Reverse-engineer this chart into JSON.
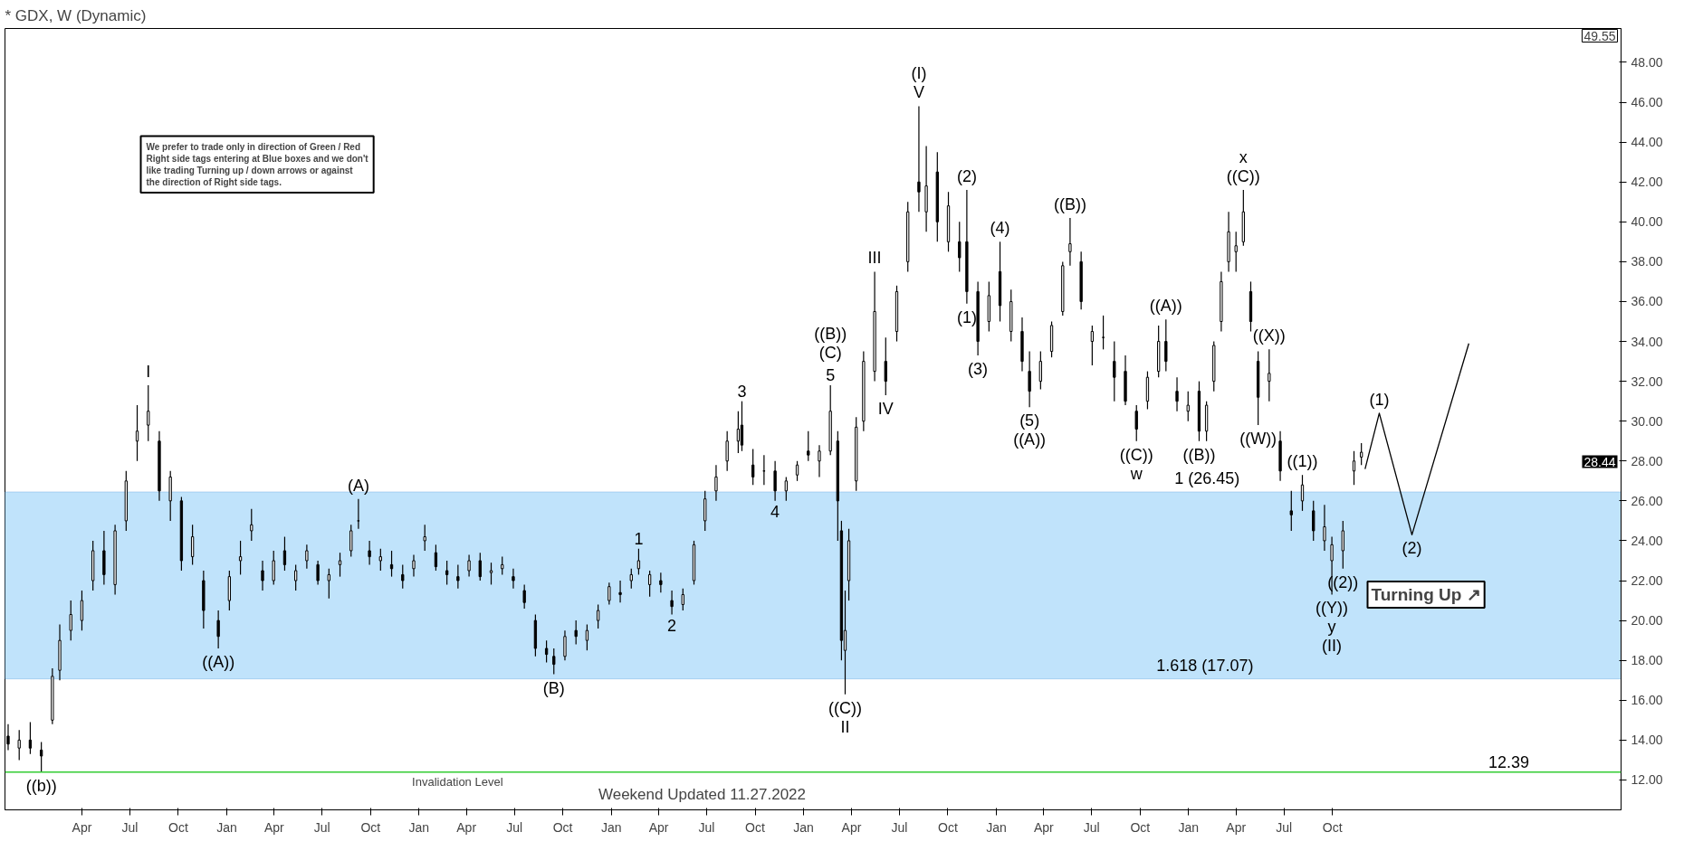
{
  "chart_data": {
    "type": "candlestick",
    "title": "* GDX, W (Dynamic)",
    "x": [
      "2015-11-13",
      "2015-12-04",
      "2015-12-25",
      "2016-01-15",
      "2016-02-05",
      "2016-02-19",
      "2016-03-11",
      "2016-04-01",
      "2016-04-22",
      "2016-05-13",
      "2016-06-03",
      "2016-06-24",
      "2016-07-15",
      "2016-08-05",
      "2016-08-26",
      "2016-09-16",
      "2016-10-07",
      "2016-10-28",
      "2016-11-18",
      "2016-12-16",
      "2017-01-06",
      "2017-01-27",
      "2017-02-17",
      "2017-03-10",
      "2017-03-31",
      "2017-04-21",
      "2017-05-12",
      "2017-06-02",
      "2017-06-23",
      "2017-07-14",
      "2017-08-04",
      "2017-08-25",
      "2017-09-08",
      "2017-09-29",
      "2017-10-20",
      "2017-11-10",
      "2017-12-01",
      "2017-12-22",
      "2018-01-12",
      "2018-02-02",
      "2018-02-23",
      "2018-03-16",
      "2018-04-06",
      "2018-04-27",
      "2018-05-18",
      "2018-06-08",
      "2018-06-29",
      "2018-07-20",
      "2018-08-10",
      "2018-08-31",
      "2018-09-14",
      "2018-10-05",
      "2018-10-26",
      "2018-11-16",
      "2018-12-07",
      "2018-12-28",
      "2019-01-18",
      "2019-02-08",
      "2019-02-22",
      "2019-03-15",
      "2019-04-05",
      "2019-04-26",
      "2019-05-17",
      "2019-06-07",
      "2019-06-28",
      "2019-07-19",
      "2019-08-09",
      "2019-08-30",
      "2019-09-06",
      "2019-09-27",
      "2019-10-18",
      "2019-11-08",
      "2019-11-29",
      "2019-12-20",
      "2020-01-10",
      "2020-01-31",
      "2020-02-21",
      "2020-03-06",
      "2020-03-13",
      "2020-03-20",
      "2020-03-27",
      "2020-04-10",
      "2020-04-24",
      "2020-05-15",
      "2020-06-05",
      "2020-06-26",
      "2020-07-17",
      "2020-08-07",
      "2020-08-21",
      "2020-09-11",
      "2020-10-02",
      "2020-10-23",
      "2020-11-06",
      "2020-11-27",
      "2020-12-18",
      "2021-01-08",
      "2021-01-29",
      "2021-02-19",
      "2021-03-05",
      "2021-03-26",
      "2021-04-16",
      "2021-05-07",
      "2021-05-21",
      "2021-06-11",
      "2021-07-02",
      "2021-07-23",
      "2021-08-13",
      "2021-09-03",
      "2021-09-24",
      "2021-10-15",
      "2021-11-05",
      "2021-11-19",
      "2021-12-10",
      "2021-12-31",
      "2022-01-21",
      "2022-02-04",
      "2022-02-18",
      "2022-03-04",
      "2022-03-18",
      "2022-04-01",
      "2022-04-15",
      "2022-04-29",
      "2022-05-13",
      "2022-06-03",
      "2022-06-24",
      "2022-07-15",
      "2022-08-05",
      "2022-08-26",
      "2022-09-16",
      "2022-09-30",
      "2022-10-21",
      "2022-11-11",
      "2022-11-25"
    ],
    "ohlc": [
      [
        14.2,
        14.8,
        13.5,
        13.8
      ],
      [
        13.6,
        14.5,
        13.0,
        14.0
      ],
      [
        14.0,
        14.9,
        13.3,
        13.6
      ],
      [
        13.5,
        13.9,
        12.4,
        13.2
      ],
      [
        15.0,
        17.6,
        14.8,
        17.2
      ],
      [
        17.5,
        19.8,
        17.0,
        19.0
      ],
      [
        19.5,
        21.0,
        19.0,
        20.3
      ],
      [
        20.0,
        21.5,
        19.5,
        21.0
      ],
      [
        22.0,
        24.0,
        21.5,
        23.5
      ],
      [
        23.5,
        24.5,
        21.8,
        22.3
      ],
      [
        21.8,
        24.8,
        21.3,
        24.5
      ],
      [
        25.0,
        27.5,
        24.5,
        27.0
      ],
      [
        29.0,
        30.8,
        28.0,
        29.5
      ],
      [
        29.8,
        31.8,
        29.0,
        30.5
      ],
      [
        29.0,
        29.5,
        26.0,
        26.5
      ],
      [
        26.0,
        27.5,
        25.0,
        27.2
      ],
      [
        26.0,
        26.2,
        22.5,
        23.0
      ],
      [
        23.2,
        24.8,
        22.8,
        24.2
      ],
      [
        22.0,
        22.5,
        19.6,
        20.5
      ],
      [
        20.0,
        20.5,
        18.6,
        19.2
      ],
      [
        21.0,
        22.5,
        20.5,
        22.2
      ],
      [
        23.0,
        24.0,
        22.3,
        23.2
      ],
      [
        24.5,
        25.6,
        24.0,
        24.8
      ],
      [
        22.5,
        23.0,
        21.5,
        22.0
      ],
      [
        22.0,
        23.5,
        21.8,
        23.0
      ],
      [
        23.5,
        24.2,
        22.5,
        22.8
      ],
      [
        22.0,
        22.8,
        21.5,
        22.5
      ],
      [
        23.0,
        23.8,
        22.6,
        23.5
      ],
      [
        22.8,
        23.0,
        21.8,
        22.0
      ],
      [
        22.0,
        22.6,
        21.1,
        22.3
      ],
      [
        22.8,
        23.4,
        22.2,
        23.0
      ],
      [
        23.5,
        24.8,
        23.2,
        24.5
      ],
      [
        25.0,
        26.1,
        24.6,
        25.0
      ],
      [
        23.5,
        24.0,
        22.8,
        23.2
      ],
      [
        23.0,
        23.6,
        22.5,
        23.2
      ],
      [
        22.8,
        23.5,
        22.2,
        22.6
      ],
      [
        22.3,
        22.8,
        21.6,
        22.0
      ],
      [
        22.6,
        23.3,
        22.2,
        23.0
      ],
      [
        24.0,
        24.8,
        23.5,
        24.2
      ],
      [
        23.4,
        23.8,
        22.5,
        22.7
      ],
      [
        22.5,
        23.0,
        21.8,
        22.3
      ],
      [
        22.2,
        22.8,
        21.6,
        22.0
      ],
      [
        22.5,
        23.3,
        22.2,
        23.0
      ],
      [
        23.0,
        23.4,
        22.0,
        22.2
      ],
      [
        22.4,
        22.9,
        21.8,
        22.5
      ],
      [
        22.6,
        23.2,
        22.3,
        22.8
      ],
      [
        22.2,
        22.6,
        21.6,
        22.0
      ],
      [
        21.5,
        21.8,
        20.6,
        20.9
      ],
      [
        20.0,
        20.3,
        18.2,
        18.6
      ],
      [
        18.6,
        19.0,
        17.9,
        18.3
      ],
      [
        18.2,
        18.6,
        17.3,
        17.8
      ],
      [
        18.2,
        19.5,
        18.0,
        19.2
      ],
      [
        19.5,
        20.0,
        18.8,
        19.2
      ],
      [
        19.0,
        19.8,
        18.5,
        19.5
      ],
      [
        20.0,
        20.8,
        19.6,
        20.5
      ],
      [
        21.0,
        21.9,
        20.8,
        21.7
      ],
      [
        21.4,
        22.0,
        20.9,
        21.3
      ],
      [
        22.0,
        22.6,
        21.6,
        22.3
      ],
      [
        22.6,
        23.6,
        22.3,
        23.0
      ],
      [
        21.8,
        22.5,
        21.2,
        22.3
      ],
      [
        22.0,
        22.4,
        21.4,
        21.8
      ],
      [
        21.0,
        21.5,
        20.3,
        20.7
      ],
      [
        20.8,
        21.6,
        20.5,
        21.3
      ],
      [
        22.0,
        24.0,
        21.8,
        23.8
      ],
      [
        25.0,
        26.5,
        24.5,
        26.1
      ],
      [
        26.5,
        27.8,
        26.0,
        27.2
      ],
      [
        28.0,
        29.5,
        27.5,
        29.0
      ],
      [
        29.0,
        30.5,
        28.4,
        29.6
      ],
      [
        29.8,
        31.0,
        28.5,
        28.8
      ],
      [
        27.8,
        28.6,
        26.8,
        27.2
      ],
      [
        27.5,
        28.3,
        26.8,
        27.5
      ],
      [
        27.5,
        28.0,
        26.0,
        26.5
      ],
      [
        26.5,
        27.2,
        26.0,
        27.0
      ],
      [
        27.3,
        28.0,
        27.0,
        27.8
      ],
      [
        28.5,
        29.5,
        28.0,
        28.3
      ],
      [
        28.0,
        28.8,
        27.2,
        28.5
      ],
      [
        28.5,
        31.8,
        28.3,
        30.5
      ],
      [
        29.0,
        29.5,
        24.0,
        26.0
      ],
      [
        24.5,
        25.0,
        18.0,
        19.0
      ],
      [
        18.5,
        21.5,
        16.3,
        19.5
      ],
      [
        22.0,
        24.6,
        21.0,
        24.0
      ],
      [
        27.0,
        30.2,
        26.5,
        29.7
      ],
      [
        30.0,
        33.5,
        29.5,
        33.0
      ],
      [
        32.5,
        37.5,
        32.0,
        35.5
      ],
      [
        33.0,
        34.2,
        31.3,
        32.0
      ],
      [
        34.5,
        36.8,
        34.0,
        36.5
      ],
      [
        38.0,
        41.0,
        37.5,
        40.5
      ],
      [
        42.0,
        45.8,
        40.5,
        41.5
      ],
      [
        40.5,
        43.8,
        39.5,
        41.8
      ],
      [
        42.5,
        43.5,
        39.0,
        40.0
      ],
      [
        39.0,
        41.5,
        38.5,
        40.8
      ],
      [
        39.0,
        40.0,
        37.5,
        38.2
      ],
      [
        39.0,
        41.6,
        35.9,
        36.5
      ],
      [
        36.5,
        37.0,
        33.3,
        34.0
      ],
      [
        35.0,
        37.0,
        34.5,
        36.3
      ],
      [
        37.5,
        39.0,
        35.0,
        35.8
      ],
      [
        34.5,
        36.6,
        34.0,
        36.0
      ],
      [
        34.5,
        35.2,
        32.5,
        33.0
      ],
      [
        32.5,
        33.5,
        30.7,
        31.5
      ],
      [
        32.0,
        33.5,
        31.6,
        33.0
      ],
      [
        33.5,
        35.0,
        33.2,
        34.8
      ],
      [
        35.5,
        38.0,
        35.3,
        37.8
      ],
      [
        38.5,
        40.2,
        37.8,
        38.9
      ],
      [
        38.0,
        38.5,
        35.6,
        36.0
      ],
      [
        34.0,
        34.8,
        32.8,
        34.5
      ],
      [
        34.2,
        35.3,
        33.6,
        34.2
      ],
      [
        33.0,
        34.0,
        31.0,
        32.2
      ],
      [
        32.5,
        33.3,
        30.8,
        31.0
      ],
      [
        30.5,
        30.8,
        29.0,
        29.6
      ],
      [
        31.0,
        32.5,
        30.6,
        32.2
      ],
      [
        32.5,
        34.8,
        32.2,
        34.0
      ],
      [
        34.0,
        35.1,
        32.5,
        33.0
      ],
      [
        31.5,
        32.2,
        30.5,
        31.0
      ],
      [
        30.5,
        31.5,
        30.0,
        30.8
      ],
      [
        31.5,
        32.0,
        29.0,
        29.5
      ],
      [
        29.5,
        31.0,
        29.0,
        30.8
      ],
      [
        32.0,
        34.0,
        31.5,
        33.8
      ],
      [
        35.0,
        37.5,
        34.5,
        37.0
      ],
      [
        38.0,
        40.5,
        37.5,
        39.5
      ],
      [
        38.5,
        39.5,
        37.5,
        38.8
      ],
      [
        39.0,
        41.6,
        38.8,
        40.5
      ],
      [
        36.5,
        37.0,
        34.5,
        35.0
      ],
      [
        33.0,
        33.5,
        29.8,
        31.2
      ],
      [
        32.0,
        33.6,
        31.0,
        32.4
      ],
      [
        29.0,
        29.5,
        27.0,
        27.5
      ],
      [
        25.5,
        26.5,
        24.5,
        25.3
      ],
      [
        26.0,
        27.3,
        25.5,
        26.8
      ],
      [
        25.5,
        26.0,
        24.0,
        24.5
      ],
      [
        24.0,
        25.8,
        23.5,
        24.7
      ],
      [
        23.0,
        24.2,
        21.3,
        23.8
      ],
      [
        23.5,
        25.0,
        22.6,
        24.5
      ],
      [
        27.5,
        28.5,
        26.8,
        28.0
      ],
      [
        28.2,
        28.9,
        27.8,
        28.44
      ]
    ],
    "series": [
      {
        "type": "line",
        "color": "#000000",
        "x": [
          "2022-12-02",
          "2022-12-29",
          "2023-03-01",
          "2023-06-17"
        ],
        "values": [
          27.6,
          30.4,
          24.3,
          33.9
        ]
      }
    ],
    "xlim": [
      "2015-11-07",
      "2024-04-01"
    ],
    "ylim": [
      10.5,
      49.7
    ],
    "xticks": [
      {
        "value": "2016-04-01",
        "label": "Apr"
      },
      {
        "value": "2016-07-01",
        "label": "Jul"
      },
      {
        "value": "2016-10-01",
        "label": "Oct"
      },
      {
        "value": "2017-01-01",
        "label": "Jan"
      },
      {
        "value": "2017-04-01",
        "label": "Apr"
      },
      {
        "value": "2017-07-01",
        "label": "Jul"
      },
      {
        "value": "2017-10-01",
        "label": "Oct"
      },
      {
        "value": "2018-01-01",
        "label": "Jan"
      },
      {
        "value": "2018-04-01",
        "label": "Apr"
      },
      {
        "value": "2018-07-01",
        "label": "Jul"
      },
      {
        "value": "2018-10-01",
        "label": "Oct"
      },
      {
        "value": "2019-01-01",
        "label": "Jan"
      },
      {
        "value": "2019-04-01",
        "label": "Apr"
      },
      {
        "value": "2019-07-01",
        "label": "Jul"
      },
      {
        "value": "2019-10-01",
        "label": "Oct"
      },
      {
        "value": "2020-01-01",
        "label": "Jan"
      },
      {
        "value": "2020-04-01",
        "label": "Apr"
      },
      {
        "value": "2020-07-01",
        "label": "Jul"
      },
      {
        "value": "2020-10-01",
        "label": "Oct"
      },
      {
        "value": "2021-01-01",
        "label": "Jan"
      },
      {
        "value": "2021-04-01",
        "label": "Apr"
      },
      {
        "value": "2021-07-01",
        "label": "Jul"
      },
      {
        "value": "2021-10-01",
        "label": "Oct"
      },
      {
        "value": "2022-01-01",
        "label": "Jan"
      },
      {
        "value": "2022-04-01",
        "label": "Apr"
      },
      {
        "value": "2022-07-01",
        "label": "Jul"
      },
      {
        "value": "2022-10-01",
        "label": "Oct"
      }
    ],
    "yticks": [
      {
        "value": 12,
        "label": "12.00"
      },
      {
        "value": 14,
        "label": "14.00"
      },
      {
        "value": 16,
        "label": "16.00"
      },
      {
        "value": 18,
        "label": "18.00"
      },
      {
        "value": 20,
        "label": "20.00"
      },
      {
        "value": 22,
        "label": "22.00"
      },
      {
        "value": 24,
        "label": "24.00"
      },
      {
        "value": 26,
        "label": "26.00"
      },
      {
        "value": 28,
        "label": "28.00"
      },
      {
        "value": 30,
        "label": "30.00"
      },
      {
        "value": 32,
        "label": "32.00"
      },
      {
        "value": 34,
        "label": "34.00"
      },
      {
        "value": 36,
        "label": "36.00"
      },
      {
        "value": 38,
        "label": "38.00"
      },
      {
        "value": 40,
        "label": "40.00"
      },
      {
        "value": 42,
        "label": "42.00"
      },
      {
        "value": 44,
        "label": "44.00"
      },
      {
        "value": 46,
        "label": "46.00"
      },
      {
        "value": 48,
        "label": "48.00"
      }
    ],
    "ref_lines": [
      {
        "axis": "y",
        "value": 12.39,
        "label": "Invalidation Level",
        "color": "#33cc33"
      }
    ],
    "bands": [
      {
        "axis": "y",
        "from": 17.07,
        "to": 26.45,
        "color": "#b0dcfa"
      }
    ],
    "grid": false,
    "annotations": [
      "We prefer to trade only in direction of Green / Red\nRight side tags entering at Blue boxes and we don't\nlike trading Turning up / down arrows or against\nthe direction of Right side tags.",
      "Weekend Updated 11.27.2022",
      "Turning Up ↗",
      "49.55",
      "28.44",
      {
        "text": "((b))",
        "x": "2016-01-15",
        "y": 12.4
      },
      {
        "text": "I",
        "x": "2016-08-05",
        "y": 31.8
      },
      {
        "text": "((A))",
        "x": "2016-12-16",
        "y": 18.6
      },
      {
        "text": "(A)",
        "x": "2017-09-08",
        "y": 26.1
      },
      {
        "text": "(B)",
        "x": "2018-09-14",
        "y": 17.3
      },
      {
        "text": "1",
        "x": "2019-02-22",
        "y": 23.6
      },
      {
        "text": "2",
        "x": "2019-04-26",
        "y": 20.3
      },
      {
        "text": "3",
        "x": "2019-09-06",
        "y": 31.0
      },
      {
        "text": "4",
        "x": "2019-11-08",
        "y": 26.0
      },
      {
        "text": "5",
        "x": "2020-02-21",
        "y": 31.8
      },
      {
        "text": "(C)",
        "x": "2020-02-21",
        "y": 31.8
      },
      {
        "text": "((B))",
        "x": "2020-02-21",
        "y": 31.8
      },
      {
        "text": "((C))",
        "x": "2020-03-20",
        "y": 16.3
      },
      {
        "text": "II",
        "x": "2020-03-20",
        "y": 16.3
      },
      {
        "text": "III",
        "x": "2020-05-15",
        "y": 37.5
      },
      {
        "text": "IV",
        "x": "2020-06-05",
        "y": 31.3
      },
      {
        "text": "V",
        "x": "2020-08-07",
        "y": 45.8
      },
      {
        "text": "(I)",
        "x": "2020-08-07",
        "y": 45.8
      },
      {
        "text": "(1)",
        "x": "2020-11-06",
        "y": 35.9
      },
      {
        "text": "(2)",
        "x": "2020-11-06",
        "y": 41.6
      },
      {
        "text": "(3)",
        "x": "2020-11-27",
        "y": 33.3
      },
      {
        "text": "(4)",
        "x": "2021-01-08",
        "y": 39.0
      },
      {
        "text": "(5)",
        "x": "2021-03-05",
        "y": 30.7
      },
      {
        "text": "((A))",
        "x": "2021-03-05",
        "y": 30.7
      },
      {
        "text": "((B))",
        "x": "2021-05-21",
        "y": 40.2
      },
      {
        "text": "((C))",
        "x": "2021-09-24",
        "y": 29.0
      },
      {
        "text": "w",
        "x": "2021-09-24",
        "y": 29.0
      },
      {
        "text": "((A))",
        "x": "2021-11-19",
        "y": 35.1
      },
      {
        "text": "((B))",
        "x": "2022-01-21",
        "y": 29.0
      },
      {
        "text": "((C))",
        "x": "2022-04-15",
        "y": 41.6
      },
      {
        "text": "x",
        "x": "2022-04-15",
        "y": 41.6
      },
      {
        "text": "((W))",
        "x": "2022-05-13",
        "y": 29.8
      },
      {
        "text": "((X))",
        "x": "2022-06-03",
        "y": 33.6
      },
      {
        "text": "((1))",
        "x": "2022-08-05",
        "y": 27.3
      },
      {
        "text": "((2))",
        "x": "2022-10-21",
        "y": 22.6
      },
      {
        "text": "((Y))",
        "x": "2022-09-30",
        "y": 21.3
      },
      {
        "text": "y",
        "x": "2022-09-30",
        "y": 21.3
      },
      {
        "text": "(II)",
        "x": "2022-09-30",
        "y": 21.3
      },
      {
        "text": "(1)",
        "x": "2022-12-29",
        "y": 30.4
      },
      {
        "text": "(2)",
        "x": "2023-03-01",
        "y": 24.3
      },
      {
        "text": "1 (26.45)",
        "x": "2022-02-05",
        "y": 26.45
      },
      {
        "text": "1.618 (17.07)",
        "x": "2022-02-01",
        "y": 17.07
      },
      {
        "text": "12.39",
        "x": "2023-09-01",
        "y": 12.39
      }
    ]
  }
}
